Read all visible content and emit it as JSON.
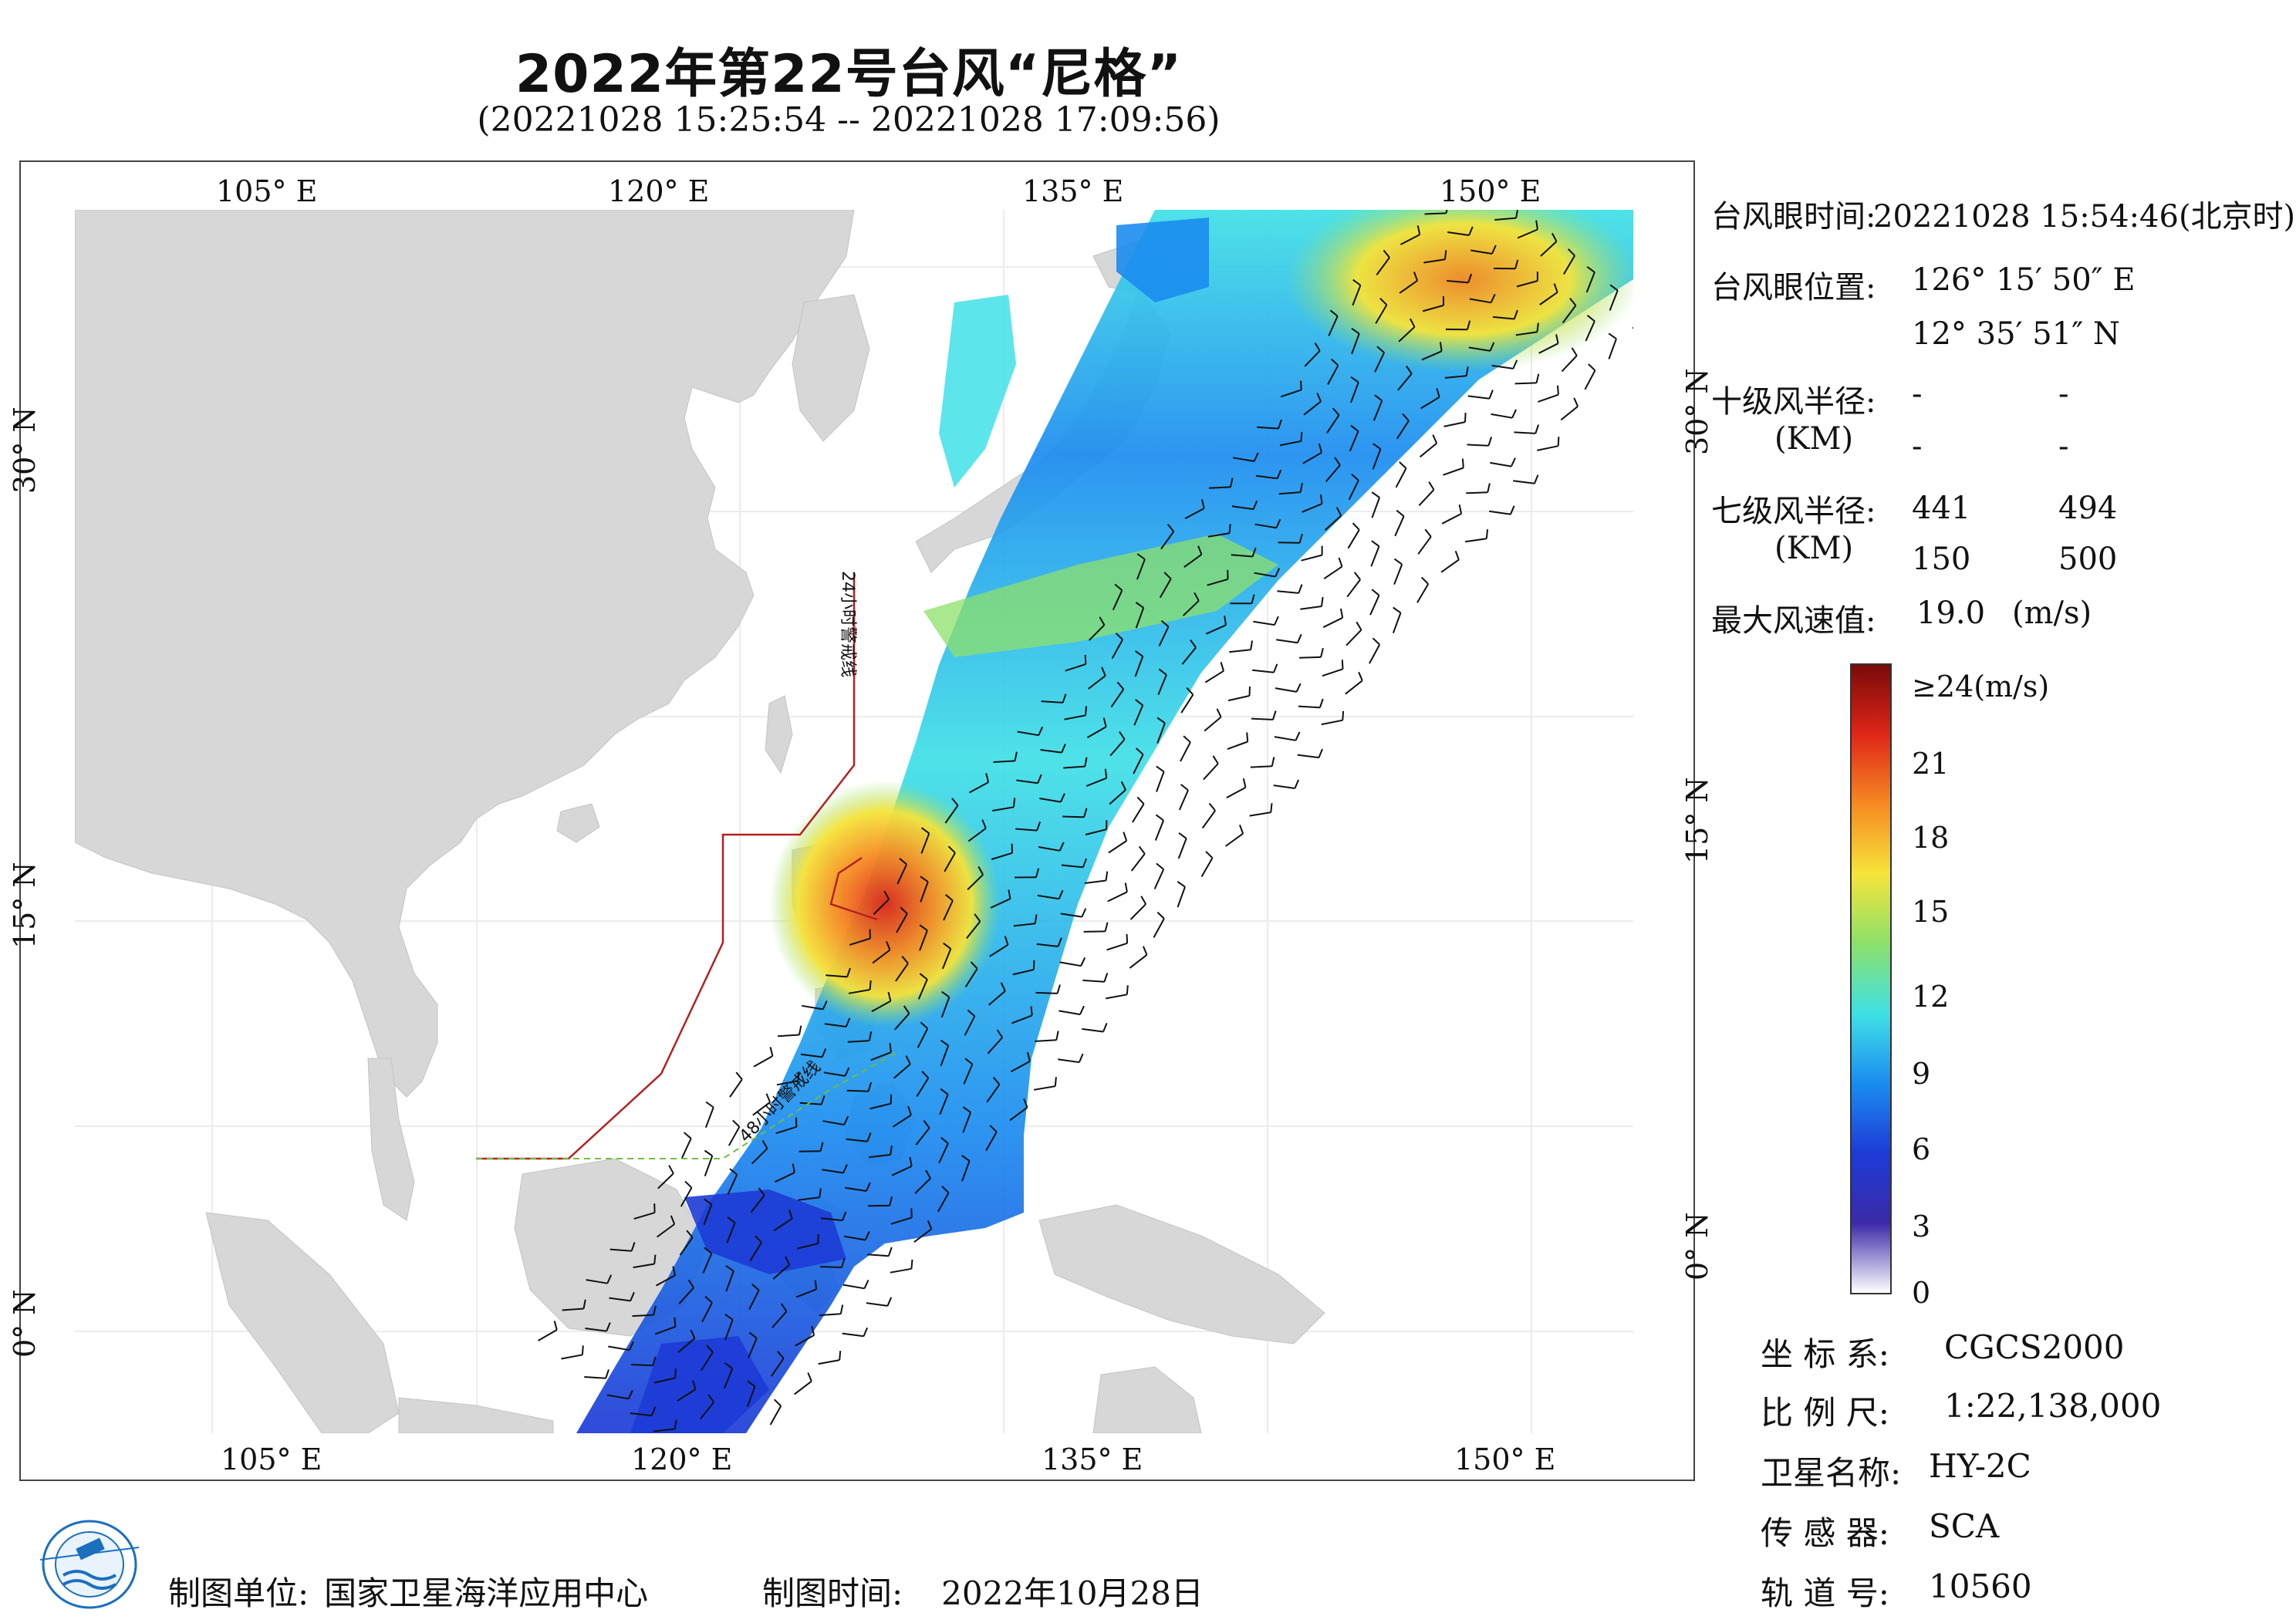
{
  "title": "2022年第22号台风“尼格”",
  "subtitle": "(20221028 15:25:54 -- 20221028 17:09:56)",
  "map": {
    "lon_ticks": [
      "105° E",
      "120° E",
      "135° E",
      "150° E"
    ],
    "lat_ticks": [
      "30° N",
      "15° N",
      "0° N"
    ],
    "warning_line_24h": "24小时警戒线",
    "warning_line_48h": "48小时警戒线",
    "colors": {
      "land": "#d7d7d7",
      "warning_line": "#b22222",
      "warning_48_line": "#6fbf3a",
      "grid": "#ececec"
    }
  },
  "info": {
    "eye_time_label": "台风眼时间:",
    "eye_time_value": "20221028 15:54:46(北京时)",
    "eye_pos_label": "台风眼位置:",
    "eye_lon": "126° 15′ 50″ E",
    "eye_lat": "12° 35′ 51″ N",
    "r10_label": "十级风半径:",
    "r10_unit": "(KM)",
    "r10_values": [
      "-",
      "-",
      "-",
      "-"
    ],
    "r7_label": "七级风半径:",
    "r7_unit": "(KM)",
    "r7_values": [
      "441",
      "494",
      "150",
      "500"
    ],
    "max_wind_label": "最大风速值:",
    "max_wind_value": "19.0",
    "max_wind_unit": "(m/s)"
  },
  "colorbar": {
    "labels": [
      "≥24(m/s)",
      "21",
      "18",
      "15",
      "12",
      "9",
      "6",
      "3",
      "0"
    ],
    "scale": [
      0,
      3,
      6,
      9,
      12,
      15,
      18,
      21,
      24
    ],
    "colors": [
      "#ffffff",
      "#3b2aa8",
      "#1d3bd6",
      "#1b8cf0",
      "#3fe0e6",
      "#8de06a",
      "#f6e43a",
      "#f68a22",
      "#e02618",
      "#7a0a0a"
    ]
  },
  "meta": {
    "coord_label": "坐 标 系:",
    "coord_value": "CGCS2000",
    "scale_label": "比 例 尺:",
    "scale_value": "1:22,138,000",
    "satellite_label": "卫星名称:",
    "satellite_value": "HY-2C",
    "sensor_label": "传 感 器:",
    "sensor_value": "SCA",
    "orbit_label": "轨 道 号:",
    "orbit_value": "10560"
  },
  "footer": {
    "unit_label": "制图单位:",
    "unit_value": "国家卫星海洋应用中心",
    "time_label": "制图时间:",
    "time_value": "2022年10月28日"
  },
  "logo_text": "NATIONAL SATELLITE OCEAN APPLICATION SERVICE"
}
